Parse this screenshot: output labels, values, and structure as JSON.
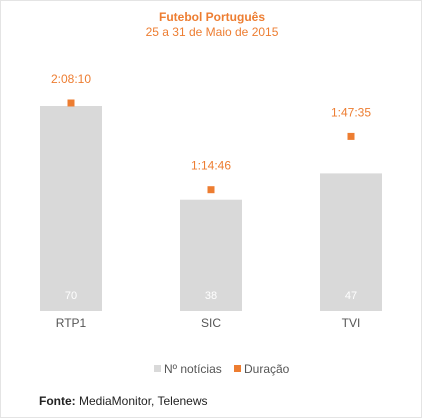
{
  "chart_data": {
    "type": "bar",
    "title": "Futebol Português",
    "subtitle": "25 a 31 de Maio de 2015",
    "categories": [
      "RTP1",
      "SIC",
      "TVI"
    ],
    "series": [
      {
        "name": "Nº notícias",
        "type": "bar",
        "values": [
          70,
          38,
          47
        ],
        "color": "#d9d9d9"
      },
      {
        "name": "Duração",
        "type": "scatter",
        "values": [
          "2:08:10",
          "1:14:46",
          "1:47:35"
        ],
        "seconds": [
          7690,
          4486,
          6455
        ],
        "color": "#ed7d31"
      }
    ],
    "legend_position": "bottom",
    "grid": false
  },
  "colors": {
    "accent": "#ed7d31",
    "bar": "#d9d9d9",
    "text": "#555555"
  },
  "source": {
    "label": "Fonte:",
    "text": "MediaMonitor, Telenews"
  }
}
